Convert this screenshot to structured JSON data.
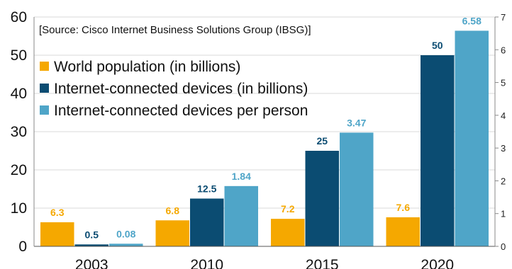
{
  "chart_data": {
    "type": "bar",
    "annotation": "[Source: Cisco Internet Business Solutions Group (IBSG)]",
    "categories": [
      "2003",
      "2010",
      "2015",
      "2020"
    ],
    "series": [
      {
        "name": "World population (in billions)",
        "values": [
          6.3,
          6.8,
          7.2,
          7.6
        ],
        "labels": [
          "6.3",
          "6.8",
          "7.2",
          "7.6"
        ],
        "color": "#F5A800",
        "axis": "left"
      },
      {
        "name": "Internet-connected devices (in billions)",
        "values": [
          0.5,
          12.5,
          25,
          50
        ],
        "labels": [
          "0.5",
          "12.5",
          "25",
          "50"
        ],
        "color": "#0B4C72",
        "axis": "left"
      },
      {
        "name": "Internet-connected devices per person",
        "values": [
          0.08,
          1.84,
          3.47,
          6.58
        ],
        "labels": [
          "0.08",
          "1.84",
          "3.47",
          "6.58"
        ],
        "color": "#4FA5C8",
        "axis": "right"
      }
    ],
    "ylim": [
      0,
      60
    ],
    "yticks": [
      "0",
      "10",
      "20",
      "30",
      "40",
      "50",
      "60"
    ],
    "y2lim": [
      0,
      7
    ],
    "y2ticks": [
      "0",
      "1",
      "2",
      "3",
      "4",
      "5",
      "6",
      "7"
    ],
    "grid": true,
    "legend_position": "top-left"
  }
}
